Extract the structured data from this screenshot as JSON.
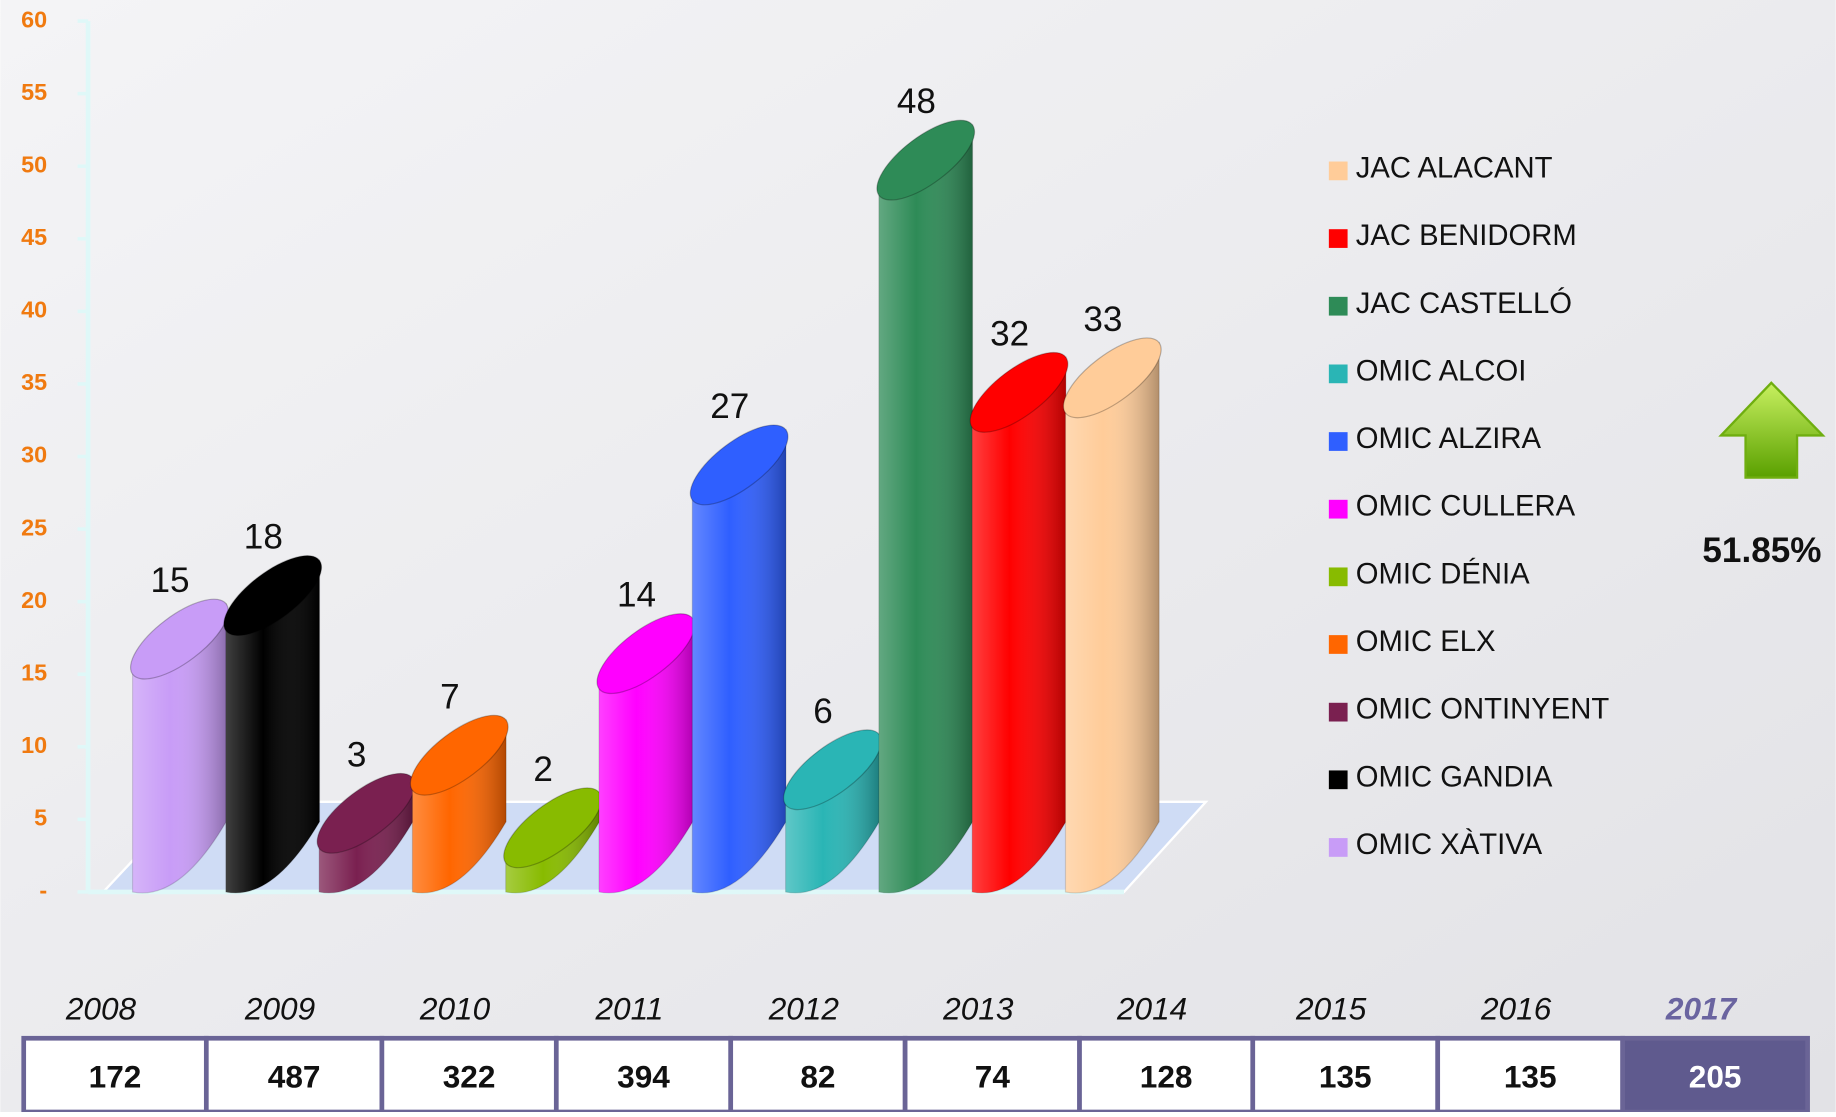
{
  "chart_data": {
    "type": "bar",
    "series": [
      {
        "name": "OMIC XÀTIVA",
        "color": "#c89cf7",
        "values": [
          15
        ]
      },
      {
        "name": "OMIC GANDIA",
        "color": "#000000",
        "values": [
          18
        ]
      },
      {
        "name": "OMIC ONTINYENT",
        "color": "#7a2050",
        "values": [
          3
        ]
      },
      {
        "name": "OMIC ELX",
        "color": "#ff6600",
        "values": [
          7
        ]
      },
      {
        "name": "OMIC DÉNIA",
        "color": "#88bb00",
        "values": [
          2
        ]
      },
      {
        "name": "OMIC CULLERA",
        "color": "#ff00ff",
        "values": [
          14
        ]
      },
      {
        "name": "OMIC ALZIRA",
        "color": "#2f5fff",
        "values": [
          27
        ]
      },
      {
        "name": "OMIC ALCOI",
        "color": "#2ab5b5",
        "values": [
          6
        ]
      },
      {
        "name": "JAC CASTELLÓ",
        "color": "#2e8b57",
        "values": [
          48
        ]
      },
      {
        "name": "JAC BENIDORM",
        "color": "#ff0000",
        "values": [
          32
        ]
      },
      {
        "name": "JAC ALACANT",
        "color": "#ffcc99",
        "values": [
          33
        ]
      }
    ],
    "ylim": [
      0,
      60
    ],
    "yticks": [
      {
        "value": 0,
        "label": "-"
      },
      5,
      10,
      15,
      20,
      25,
      30,
      35,
      40,
      45,
      50,
      55,
      60
    ],
    "legend": "right"
  },
  "table": {
    "years": [
      "2008",
      "2009",
      "2010",
      "2011",
      "2012",
      "2013",
      "2014",
      "2015",
      "2016",
      "2017"
    ],
    "counts": [
      172,
      487,
      322,
      394,
      82,
      74,
      128,
      135,
      135,
      205
    ]
  },
  "change": "51.85%"
}
